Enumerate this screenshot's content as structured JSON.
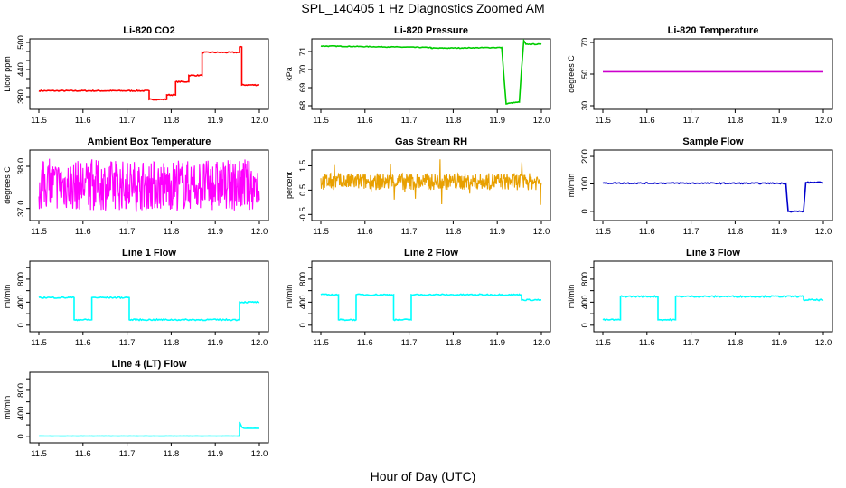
{
  "title": "SPL_140405  1 Hz Diagnostics Zoomed AM",
  "xlabel": "Hour of Day (UTC)",
  "chart_data": [
    {
      "type": "line",
      "title": "Li-820 CO2",
      "ylabel": "Licor ppm",
      "color": "#ff0000",
      "xlim": [
        11.5,
        12.0
      ],
      "ylim": [
        360,
        500
      ],
      "xticks": [
        "11.5",
        "11.6",
        "11.7",
        "11.8",
        "11.9",
        "12.0"
      ],
      "yticks": [
        380,
        440,
        500
      ],
      "yticks_minor": [
        380,
        400,
        420,
        440,
        460,
        480,
        500
      ],
      "noise": 1.2,
      "series": [
        {
          "x": [
            11.5,
            11.75,
            11.75,
            11.79,
            11.79,
            11.81,
            11.81,
            11.84,
            11.84,
            11.87,
            11.87,
            11.955,
            11.955,
            11.96,
            11.96,
            12.0
          ],
          "y": [
            393,
            393,
            374,
            374,
            384,
            384,
            413,
            413,
            427,
            427,
            478,
            478,
            490,
            490,
            406,
            406
          ]
        }
      ]
    },
    {
      "type": "line",
      "title": "Li-820 Pressure",
      "ylabel": "kPa",
      "color": "#00cc00",
      "xlim": [
        11.5,
        12.0
      ],
      "ylim": [
        68,
        71.5
      ],
      "xticks": [
        "11.5",
        "11.6",
        "11.7",
        "11.8",
        "11.9",
        "12.0"
      ],
      "yticks": [
        68,
        69,
        70,
        71
      ],
      "noise": 0.02,
      "series": [
        {
          "x": [
            11.5,
            11.75,
            11.75,
            11.91,
            11.92,
            11.93,
            11.95,
            11.955,
            11.96,
            11.965,
            12.0
          ],
          "y": [
            71.3,
            71.22,
            71.18,
            71.22,
            68.1,
            68.15,
            68.2,
            70.0,
            71.6,
            71.4,
            71.4
          ]
        }
      ]
    },
    {
      "type": "line",
      "title": "Li-820 Temperature",
      "ylabel": "degrees C",
      "color": "#cc00cc",
      "xlim": [
        11.5,
        12.0
      ],
      "ylim": [
        30,
        70
      ],
      "xticks": [
        "11.5",
        "11.6",
        "11.7",
        "11.8",
        "11.9",
        "12.0"
      ],
      "yticks": [
        30,
        50,
        70
      ],
      "noise": 0,
      "series": [
        {
          "x": [
            11.5,
            12.0
          ],
          "y": [
            51.5,
            51.5
          ]
        }
      ]
    },
    {
      "type": "line",
      "title": "Ambient Box Temperature",
      "ylabel": "degrees C",
      "color": "#ff00ff",
      "xlim": [
        11.5,
        12.0
      ],
      "ylim": [
        36.8,
        38.3
      ],
      "xticks": [
        "11.5",
        "11.6",
        "11.7",
        "11.8",
        "11.9",
        "12.0"
      ],
      "yticks": [
        37.0,
        38.0
      ],
      "ytick_labels": [
        "37.0",
        "38.0"
      ],
      "noise_band": [
        36.95,
        38.15
      ],
      "series": [
        {
          "x": [
            11.5,
            12.0
          ],
          "y": [
            37.55,
            37.55
          ]
        }
      ]
    },
    {
      "type": "line",
      "title": "Gas Stream RH",
      "ylabel": "percent",
      "color": "#e8a000",
      "xlim": [
        11.5,
        12.0
      ],
      "ylim": [
        -0.6,
        2.0
      ],
      "xticks": [
        "11.5",
        "11.6",
        "11.7",
        "11.8",
        "11.9",
        "12.0"
      ],
      "yticks": [
        -0.5,
        0.5,
        1.5
      ],
      "ytick_labels": [
        "-0.5",
        "0.5",
        "1.5"
      ],
      "noise_band": [
        0.5,
        1.2
      ],
      "series": [
        {
          "x": [
            11.5,
            12.0
          ],
          "y": [
            0.85,
            0.85
          ]
        }
      ]
    },
    {
      "type": "line",
      "title": "Sample Flow",
      "ylabel": "ml/min",
      "color": "#0000cc",
      "xlim": [
        11.5,
        12.0
      ],
      "ylim": [
        -20,
        210
      ],
      "xticks": [
        "11.5",
        "11.6",
        "11.7",
        "11.8",
        "11.9",
        "12.0"
      ],
      "yticks": [
        0,
        100,
        200
      ],
      "noise": 2,
      "series": [
        {
          "x": [
            11.5,
            11.915,
            11.92,
            11.955,
            11.96,
            12.0
          ],
          "y": [
            103,
            102,
            0,
            0,
            105,
            105
          ]
        }
      ]
    },
    {
      "type": "line",
      "title": "Line 1 Flow",
      "ylabel": "ml/min",
      "color": "#00ffff",
      "xlim": [
        11.5,
        12.0
      ],
      "ylim": [
        -50,
        1050
      ],
      "xticks": [
        "11.5",
        "11.6",
        "11.7",
        "11.8",
        "11.9",
        "12.0"
      ],
      "yticks": [
        0,
        200,
        400,
        600,
        800,
        1000
      ],
      "ytick_labels": [
        "0",
        "",
        "400",
        "",
        "800",
        ""
      ],
      "noise": 12,
      "series": [
        {
          "x": [
            11.5,
            11.58,
            11.58,
            11.62,
            11.62,
            11.705,
            11.705,
            11.955,
            11.955,
            12.0
          ],
          "y": [
            480,
            480,
            95,
            95,
            480,
            480,
            95,
            95,
            400,
            400
          ]
        }
      ]
    },
    {
      "type": "line",
      "title": "Line 2 Flow",
      "ylabel": "ml/min",
      "color": "#00ffff",
      "xlim": [
        11.5,
        12.0
      ],
      "ylim": [
        -50,
        1050
      ],
      "xticks": [
        "11.5",
        "11.6",
        "11.7",
        "11.8",
        "11.9",
        "12.0"
      ],
      "yticks": [
        0,
        200,
        400,
        600,
        800,
        1000
      ],
      "ytick_labels": [
        "0",
        "",
        "400",
        "",
        "800",
        ""
      ],
      "noise": 12,
      "series": [
        {
          "x": [
            11.5,
            11.54,
            11.54,
            11.58,
            11.58,
            11.665,
            11.665,
            11.705,
            11.705,
            11.955,
            11.955,
            12.0
          ],
          "y": [
            530,
            530,
            95,
            95,
            530,
            530,
            95,
            95,
            530,
            530,
            440,
            440
          ]
        }
      ]
    },
    {
      "type": "line",
      "title": "Line 3 Flow",
      "ylabel": "ml/min",
      "color": "#00ffff",
      "xlim": [
        11.5,
        12.0
      ],
      "ylim": [
        -50,
        1050
      ],
      "xticks": [
        "11.5",
        "11.6",
        "11.7",
        "11.8",
        "11.9",
        "12.0"
      ],
      "yticks": [
        0,
        200,
        400,
        600,
        800,
        1000
      ],
      "ytick_labels": [
        "0",
        "",
        "400",
        "",
        "800",
        ""
      ],
      "noise": 12,
      "series": [
        {
          "x": [
            11.5,
            11.54,
            11.54,
            11.625,
            11.625,
            11.665,
            11.665,
            11.955,
            11.955,
            12.0
          ],
          "y": [
            95,
            95,
            500,
            500,
            95,
            95,
            500,
            500,
            440,
            440
          ]
        }
      ]
    },
    {
      "type": "line",
      "title": "Line 4 (LT) Flow",
      "ylabel": "ml/min",
      "color": "#00ffff",
      "xlim": [
        11.5,
        12.0
      ],
      "ylim": [
        -50,
        1050
      ],
      "xticks": [
        "11.5",
        "11.6",
        "11.7",
        "11.8",
        "11.9",
        "12.0"
      ],
      "yticks": [
        0,
        200,
        400,
        600,
        800,
        1000
      ],
      "ytick_labels": [
        "0",
        "",
        "400",
        "",
        "800",
        ""
      ],
      "noise": 2,
      "series": [
        {
          "x": [
            11.5,
            11.955,
            11.955,
            11.96,
            11.965,
            12.0
          ],
          "y": [
            5,
            5,
            250,
            160,
            140,
            140
          ]
        }
      ]
    }
  ]
}
